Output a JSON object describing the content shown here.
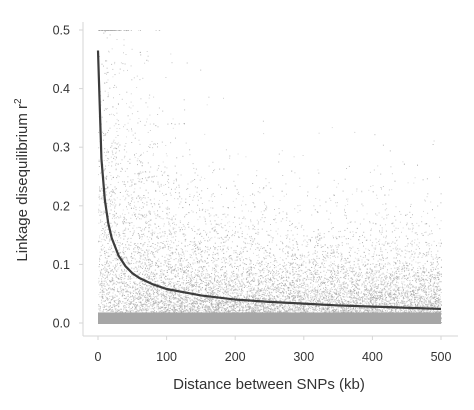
{
  "chart_data": {
    "type": "scatter",
    "xlabel": "Distance between SNPs (kb)",
    "ylabel": "Linkage disequilibrium r",
    "ylabel_superscript": "2",
    "xlim": [
      0,
      500
    ],
    "ylim": [
      0,
      0.5
    ],
    "x_ticks": [
      0,
      100,
      200,
      300,
      400,
      500
    ],
    "y_ticks": [
      0.0,
      0.1,
      0.2,
      0.3,
      0.4,
      0.5
    ],
    "x_tick_labels": [
      "0",
      "100",
      "200",
      "300",
      "400",
      "500"
    ],
    "y_tick_labels": [
      "0.0",
      "0.1",
      "0.2",
      "0.3",
      "0.4",
      "0.5"
    ],
    "grid": false,
    "legend": "none",
    "colors": {
      "points": "#a6a6a6",
      "curve": "#3c3c3c",
      "axis": "#d6d6d6",
      "text": "#333333"
    },
    "series": [
      {
        "type": "line",
        "x": [
          0,
          5,
          10,
          15,
          20,
          30,
          40,
          50,
          60,
          80,
          100,
          150,
          200,
          250,
          300,
          350,
          400,
          450,
          500
        ],
        "y": [
          0.465,
          0.28,
          0.21,
          0.17,
          0.145,
          0.115,
          0.097,
          0.085,
          0.077,
          0.066,
          0.058,
          0.047,
          0.04,
          0.036,
          0.033,
          0.03,
          0.028,
          0.026,
          0.024
        ]
      }
    ]
  }
}
